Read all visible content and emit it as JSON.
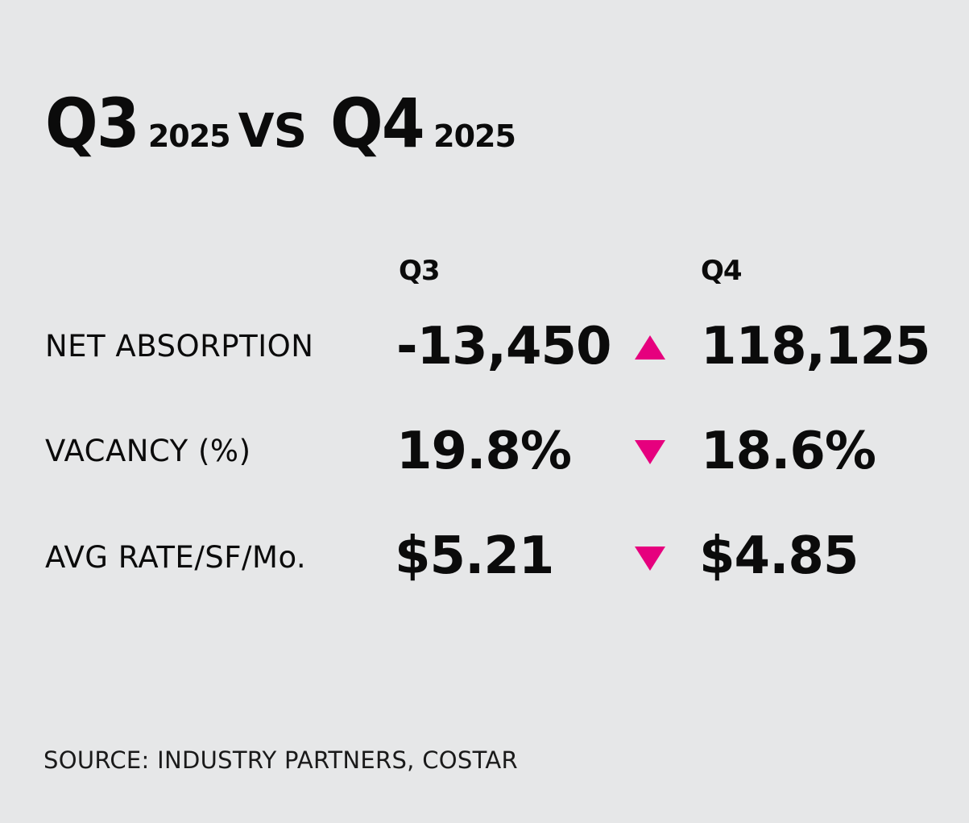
{
  "title": {
    "left_quarter": "Q3",
    "left_year": "2025",
    "vs": "VS",
    "right_quarter": "Q4",
    "right_year": "2025"
  },
  "columns": {
    "q3": "Q3",
    "q4": "Q4"
  },
  "rows": [
    {
      "label": "NET ABSORPTION",
      "q3": "-13,450",
      "trend": "up",
      "q4": "118,125"
    },
    {
      "label": "VACANCY (%)",
      "q3": "19.8%",
      "trend": "down",
      "q4": "18.6%"
    },
    {
      "label": "AVG RATE/SF/Mo.",
      "q3": "$5.21",
      "trend": "down",
      "q4": "$4.85"
    }
  ],
  "source": "SOURCE: INDUSTRY PARTNERS, COSTAR",
  "colors": {
    "background": "#e6e7e8",
    "text": "#0b0b0b",
    "trend_indicator": "#e6007e"
  }
}
